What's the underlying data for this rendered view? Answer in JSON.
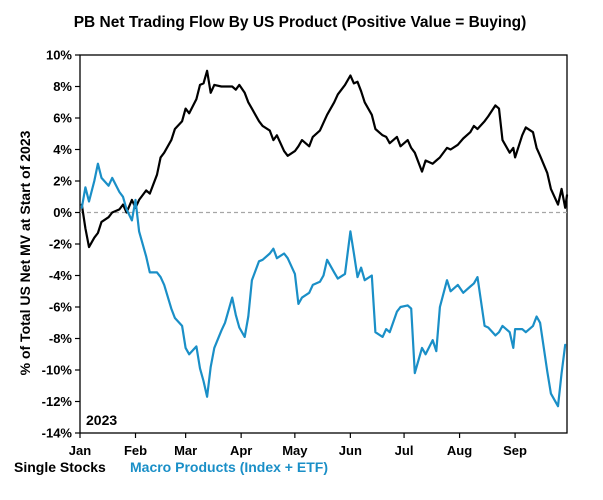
{
  "chart_data": {
    "type": "line",
    "title": "PB Net Trading Flow By US Product (Positive Value = Buying)",
    "ylabel": "% of Total US Net MV at Start of 2023",
    "xlabel": "",
    "year_label": "2023",
    "ylim": [
      -14,
      10
    ],
    "y_ticks": [
      10,
      8,
      6,
      4,
      2,
      0,
      -2,
      -4,
      -6,
      -8,
      -10,
      -12,
      -14
    ],
    "y_tick_labels": [
      "10%",
      "8%",
      "6%",
      "4%",
      "2%",
      "0%",
      "-2%",
      "-4%",
      "-6%",
      "-8%",
      "-10%",
      "-12%",
      "-14%"
    ],
    "x_range": [
      "2023-01-01",
      "2023-09-30"
    ],
    "x_ticks": [
      {
        "date": "2023-01-01",
        "label": "Jan"
      },
      {
        "date": "2023-02-01",
        "label": "Feb"
      },
      {
        "date": "2023-03-01",
        "label": "Mar"
      },
      {
        "date": "2023-04-01",
        "label": "Apr"
      },
      {
        "date": "2023-05-01",
        "label": "May"
      },
      {
        "date": "2023-06-01",
        "label": "Jun"
      },
      {
        "date": "2023-07-01",
        "label": "Jul"
      },
      {
        "date": "2023-08-01",
        "label": "Aug"
      },
      {
        "date": "2023-09-01",
        "label": "Sep"
      }
    ],
    "zero_line": {
      "value": 0,
      "style": "dashed",
      "color": "#a6a6a6"
    },
    "grid": false,
    "legend_placement": "bottom-left",
    "series": [
      {
        "name": "Single Stocks",
        "color": "#000000",
        "points": [
          [
            "2023-01-02",
            0.5
          ],
          [
            "2023-01-04",
            -1.0
          ],
          [
            "2023-01-06",
            -2.2
          ],
          [
            "2023-01-09",
            -1.6
          ],
          [
            "2023-01-11",
            -1.3
          ],
          [
            "2023-01-13",
            -0.6
          ],
          [
            "2023-01-17",
            -0.3
          ],
          [
            "2023-01-19",
            0.0
          ],
          [
            "2023-01-23",
            0.2
          ],
          [
            "2023-01-25",
            0.5
          ],
          [
            "2023-01-27",
            0.0
          ],
          [
            "2023-01-30",
            0.8
          ],
          [
            "2023-02-01",
            0.3
          ],
          [
            "2023-02-03",
            0.8
          ],
          [
            "2023-02-07",
            1.4
          ],
          [
            "2023-02-09",
            1.2
          ],
          [
            "2023-02-13",
            2.4
          ],
          [
            "2023-02-15",
            3.5
          ],
          [
            "2023-02-17",
            3.8
          ],
          [
            "2023-02-21",
            4.6
          ],
          [
            "2023-02-23",
            5.3
          ],
          [
            "2023-02-27",
            5.8
          ],
          [
            "2023-03-01",
            6.6
          ],
          [
            "2023-03-03",
            6.3
          ],
          [
            "2023-03-07",
            7.2
          ],
          [
            "2023-03-09",
            8.1
          ],
          [
            "2023-03-11",
            8.2
          ],
          [
            "2023-03-13",
            9.0
          ],
          [
            "2023-03-15",
            7.6
          ],
          [
            "2023-03-17",
            8.1
          ],
          [
            "2023-03-21",
            8.0
          ],
          [
            "2023-03-23",
            8.0
          ],
          [
            "2023-03-27",
            8.0
          ],
          [
            "2023-03-29",
            7.8
          ],
          [
            "2023-03-31",
            8.1
          ],
          [
            "2023-04-03",
            7.6
          ],
          [
            "2023-04-05",
            7.0
          ],
          [
            "2023-04-07",
            6.6
          ],
          [
            "2023-04-11",
            5.8
          ],
          [
            "2023-04-13",
            5.5
          ],
          [
            "2023-04-17",
            5.2
          ],
          [
            "2023-04-19",
            4.6
          ],
          [
            "2023-04-21",
            4.9
          ],
          [
            "2023-04-25",
            3.9
          ],
          [
            "2023-04-27",
            3.6
          ],
          [
            "2023-05-01",
            3.9
          ],
          [
            "2023-05-03",
            4.2
          ],
          [
            "2023-05-05",
            4.6
          ],
          [
            "2023-05-09",
            4.2
          ],
          [
            "2023-05-11",
            4.8
          ],
          [
            "2023-05-15",
            5.2
          ],
          [
            "2023-05-17",
            5.7
          ],
          [
            "2023-05-19",
            6.2
          ],
          [
            "2023-05-23",
            7.0
          ],
          [
            "2023-05-25",
            7.5
          ],
          [
            "2023-05-29",
            8.1
          ],
          [
            "2023-06-01",
            8.7
          ],
          [
            "2023-06-03",
            8.2
          ],
          [
            "2023-06-05",
            8.3
          ],
          [
            "2023-06-07",
            7.7
          ],
          [
            "2023-06-09",
            7.0
          ],
          [
            "2023-06-13",
            6.2
          ],
          [
            "2023-06-15",
            5.3
          ],
          [
            "2023-06-19",
            4.9
          ],
          [
            "2023-06-21",
            4.8
          ],
          [
            "2023-06-23",
            4.4
          ],
          [
            "2023-06-27",
            4.8
          ],
          [
            "2023-06-29",
            4.2
          ],
          [
            "2023-07-03",
            4.6
          ],
          [
            "2023-07-05",
            4.1
          ],
          [
            "2023-07-07",
            3.8
          ],
          [
            "2023-07-11",
            2.6
          ],
          [
            "2023-07-13",
            3.3
          ],
          [
            "2023-07-17",
            3.1
          ],
          [
            "2023-07-19",
            3.3
          ],
          [
            "2023-07-21",
            3.5
          ],
          [
            "2023-07-25",
            4.1
          ],
          [
            "2023-07-27",
            4.0
          ],
          [
            "2023-07-31",
            4.3
          ],
          [
            "2023-08-03",
            4.7
          ],
          [
            "2023-08-07",
            5.1
          ],
          [
            "2023-08-09",
            5.5
          ],
          [
            "2023-08-11",
            5.3
          ],
          [
            "2023-08-15",
            5.8
          ],
          [
            "2023-08-17",
            6.1
          ],
          [
            "2023-08-21",
            6.8
          ],
          [
            "2023-08-23",
            6.6
          ],
          [
            "2023-08-25",
            4.6
          ],
          [
            "2023-08-29",
            3.8
          ],
          [
            "2023-08-31",
            4.1
          ],
          [
            "2023-09-01",
            3.5
          ],
          [
            "2023-09-05",
            4.9
          ],
          [
            "2023-09-07",
            5.4
          ],
          [
            "2023-09-11",
            5.1
          ],
          [
            "2023-09-13",
            4.1
          ],
          [
            "2023-09-15",
            3.6
          ],
          [
            "2023-09-19",
            2.5
          ],
          [
            "2023-09-21",
            1.5
          ],
          [
            "2023-09-25",
            0.5
          ],
          [
            "2023-09-27",
            1.5
          ],
          [
            "2023-09-29",
            0.3
          ],
          [
            "2023-09-30",
            1.1
          ]
        ]
      },
      {
        "name": "Macro Products (Index + ETF)",
        "color": "#1a8fc7",
        "points": [
          [
            "2023-01-02",
            0.3
          ],
          [
            "2023-01-04",
            1.6
          ],
          [
            "2023-01-06",
            0.7
          ],
          [
            "2023-01-09",
            2.0
          ],
          [
            "2023-01-11",
            3.1
          ],
          [
            "2023-01-13",
            2.2
          ],
          [
            "2023-01-17",
            1.7
          ],
          [
            "2023-01-19",
            2.2
          ],
          [
            "2023-01-23",
            1.3
          ],
          [
            "2023-01-25",
            1.0
          ],
          [
            "2023-01-27",
            0.2
          ],
          [
            "2023-01-30",
            -0.5
          ],
          [
            "2023-02-01",
            0.8
          ],
          [
            "2023-02-03",
            -1.2
          ],
          [
            "2023-02-07",
            -2.8
          ],
          [
            "2023-02-09",
            -3.8
          ],
          [
            "2023-02-13",
            -3.8
          ],
          [
            "2023-02-15",
            -4.1
          ],
          [
            "2023-02-17",
            -4.6
          ],
          [
            "2023-02-21",
            -6.1
          ],
          [
            "2023-02-23",
            -6.7
          ],
          [
            "2023-02-27",
            -7.2
          ],
          [
            "2023-03-01",
            -8.6
          ],
          [
            "2023-03-03",
            -9.0
          ],
          [
            "2023-03-07",
            -8.5
          ],
          [
            "2023-03-09",
            -9.9
          ],
          [
            "2023-03-11",
            -10.7
          ],
          [
            "2023-03-13",
            -11.7
          ],
          [
            "2023-03-15",
            -9.8
          ],
          [
            "2023-03-17",
            -8.6
          ],
          [
            "2023-03-21",
            -7.5
          ],
          [
            "2023-03-23",
            -7.0
          ],
          [
            "2023-03-27",
            -5.4
          ],
          [
            "2023-03-29",
            -6.5
          ],
          [
            "2023-03-31",
            -7.3
          ],
          [
            "2023-04-03",
            -7.9
          ],
          [
            "2023-04-05",
            -6.6
          ],
          [
            "2023-04-07",
            -4.3
          ],
          [
            "2023-04-11",
            -3.1
          ],
          [
            "2023-04-13",
            -3.0
          ],
          [
            "2023-04-17",
            -2.6
          ],
          [
            "2023-04-19",
            -2.3
          ],
          [
            "2023-04-21",
            -2.9
          ],
          [
            "2023-04-25",
            -2.6
          ],
          [
            "2023-04-27",
            -2.9
          ],
          [
            "2023-05-01",
            -3.9
          ],
          [
            "2023-05-03",
            -5.8
          ],
          [
            "2023-05-05",
            -5.4
          ],
          [
            "2023-05-09",
            -5.1
          ],
          [
            "2023-05-11",
            -4.6
          ],
          [
            "2023-05-15",
            -4.4
          ],
          [
            "2023-05-17",
            -4.0
          ],
          [
            "2023-05-19",
            -3.0
          ],
          [
            "2023-05-23",
            -3.8
          ],
          [
            "2023-05-25",
            -4.2
          ],
          [
            "2023-05-29",
            -3.9
          ],
          [
            "2023-06-01",
            -1.2
          ],
          [
            "2023-06-03",
            -2.6
          ],
          [
            "2023-06-05",
            -4.1
          ],
          [
            "2023-06-07",
            -3.5
          ],
          [
            "2023-06-09",
            -4.3
          ],
          [
            "2023-06-13",
            -4.0
          ],
          [
            "2023-06-15",
            -7.6
          ],
          [
            "2023-06-19",
            -7.9
          ],
          [
            "2023-06-21",
            -7.4
          ],
          [
            "2023-06-23",
            -7.6
          ],
          [
            "2023-06-27",
            -6.3
          ],
          [
            "2023-06-29",
            -6.0
          ],
          [
            "2023-07-03",
            -5.9
          ],
          [
            "2023-07-05",
            -6.1
          ],
          [
            "2023-07-07",
            -10.2
          ],
          [
            "2023-07-11",
            -8.6
          ],
          [
            "2023-07-13",
            -9.0
          ],
          [
            "2023-07-17",
            -8.1
          ],
          [
            "2023-07-19",
            -8.8
          ],
          [
            "2023-07-21",
            -6.0
          ],
          [
            "2023-07-25",
            -4.3
          ],
          [
            "2023-07-27",
            -5.0
          ],
          [
            "2023-07-31",
            -4.6
          ],
          [
            "2023-08-03",
            -5.1
          ],
          [
            "2023-08-07",
            -4.7
          ],
          [
            "2023-08-09",
            -4.5
          ],
          [
            "2023-08-11",
            -4.1
          ],
          [
            "2023-08-15",
            -7.2
          ],
          [
            "2023-08-17",
            -7.3
          ],
          [
            "2023-08-21",
            -7.8
          ],
          [
            "2023-08-23",
            -7.6
          ],
          [
            "2023-08-25",
            -7.2
          ],
          [
            "2023-08-29",
            -7.6
          ],
          [
            "2023-08-31",
            -8.6
          ],
          [
            "2023-09-01",
            -7.4
          ],
          [
            "2023-09-05",
            -7.4
          ],
          [
            "2023-09-07",
            -7.6
          ],
          [
            "2023-09-11",
            -7.2
          ],
          [
            "2023-09-13",
            -6.6
          ],
          [
            "2023-09-15",
            -7.0
          ],
          [
            "2023-09-19",
            -10.1
          ],
          [
            "2023-09-21",
            -11.5
          ],
          [
            "2023-09-25",
            -12.3
          ],
          [
            "2023-09-27",
            -10.2
          ],
          [
            "2023-09-29",
            -8.4
          ]
        ]
      }
    ]
  }
}
